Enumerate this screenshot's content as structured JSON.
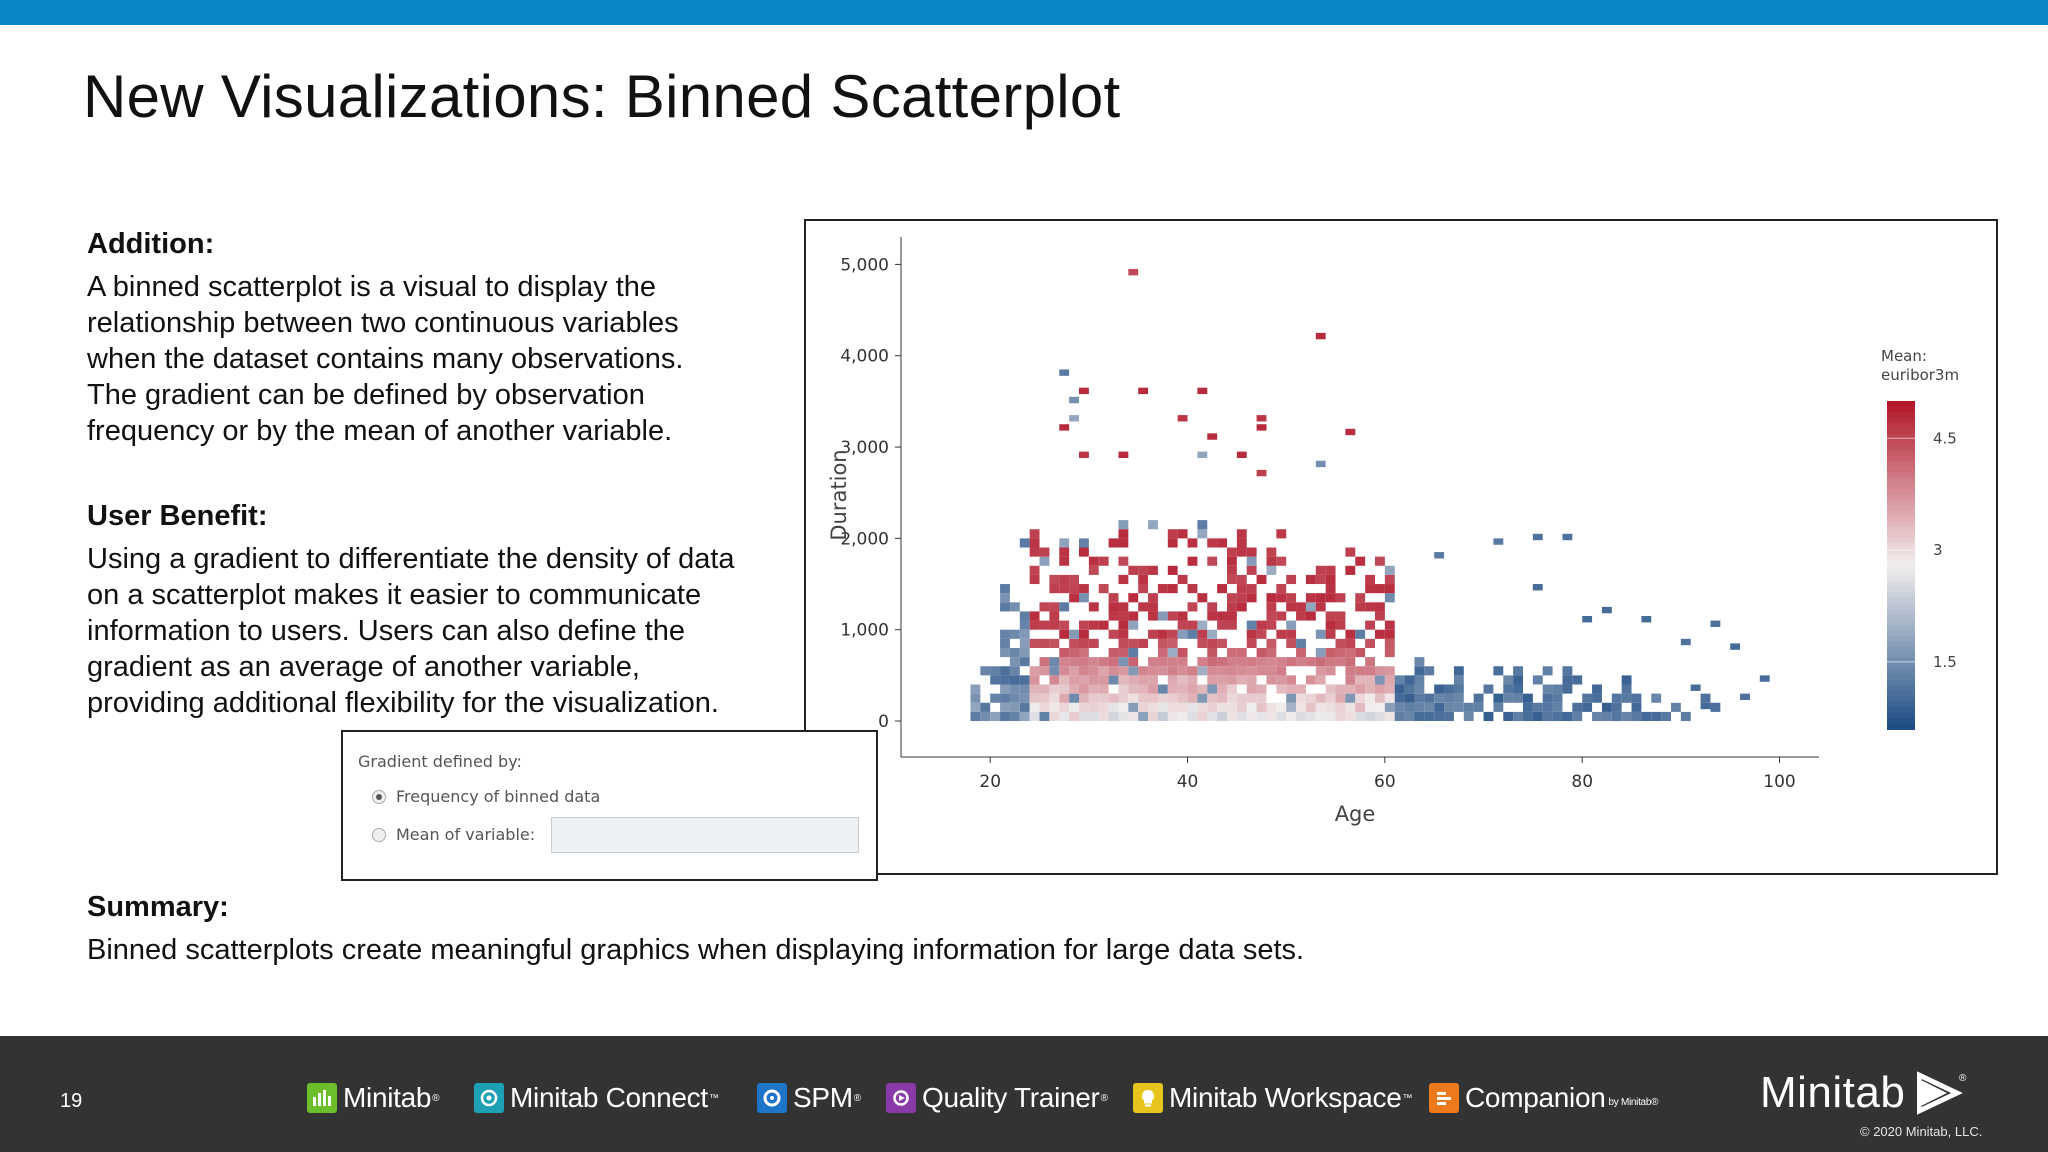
{
  "slide": {
    "title": "New Visualizations: Binned Scatterplot",
    "page_number": "19"
  },
  "addition": {
    "heading": "Addition:",
    "lines": [
      "A binned scatterplot is a visual to display the",
      "relationship between two continuous variables",
      "when the dataset contains many observations.",
      "The gradient can be defined by observation",
      "frequency or by the mean of another variable."
    ]
  },
  "user_benefit": {
    "heading": "User Benefit:",
    "lines": [
      "Using a gradient to differentiate the density of data",
      "on a scatterplot makes it easier to communicate",
      "information to users. Users can also define the",
      "gradient as an average of another variable,",
      "providing additional flexibility for the visualization."
    ]
  },
  "summary": {
    "heading": "Summary:",
    "text": "Binned scatterplots create meaningful graphics when displaying information for large data sets."
  },
  "dialog": {
    "title": "Gradient defined by:",
    "options": [
      "Frequency of binned data",
      "Mean of variable:"
    ],
    "selected": 0,
    "variable_value": ""
  },
  "colors": {
    "accent_bar": "#0a86c8",
    "footer_bg": "#333333",
    "gradient_high": "#b2182b",
    "gradient_mid": "#f2eeee",
    "gradient_low": "#1f4e85"
  },
  "chart_data": {
    "type": "heatmap",
    "subtype": "binned scatterplot",
    "title": "",
    "xlabel": "Age",
    "ylabel": "Duration",
    "xlim": [
      14,
      104
    ],
    "ylim": [
      -350,
      5300
    ],
    "xticks": [
      20,
      40,
      60,
      80,
      100
    ],
    "xtick_labels": [
      "20",
      "40",
      "60",
      "80",
      "100"
    ],
    "yticks": [
      0,
      1000,
      2000,
      3000,
      4000,
      5000
    ],
    "ytick_labels": [
      "0",
      "1,000",
      "2,000",
      "3,000",
      "4,000",
      "5,000"
    ],
    "bin_width_x": 1,
    "bin_height_y": 100,
    "color_variable": "Mean: euribor3m",
    "legend_title_lines": [
      "Mean:",
      "euribor3m"
    ],
    "legend_placement": "right",
    "legend_ticks": [
      4.5,
      3,
      1.5
    ],
    "legend_tick_labels": [
      "4.5",
      "3",
      "1.5"
    ],
    "legend_range": [
      0.6,
      5.0
    ],
    "regions_note": "Low duration bins dense across ages 18-95; ages 18-24 and >60 have low euribor3m (blue), ages 24-60 have high euribor3m (red), with a pale core of mid values at low durations.",
    "outliers": [
      {
        "x": 34,
        "y": 4900,
        "mean": 4.5
      },
      {
        "x": 53,
        "y": 4200,
        "mean": 4.8
      },
      {
        "x": 27,
        "y": 3800,
        "mean": 1.2
      },
      {
        "x": 29,
        "y": 3600,
        "mean": 4.8
      },
      {
        "x": 35,
        "y": 3600,
        "mean": 4.8
      },
      {
        "x": 41,
        "y": 3600,
        "mean": 4.8
      },
      {
        "x": 28,
        "y": 3500,
        "mean": 1.5
      },
      {
        "x": 28,
        "y": 3300,
        "mean": 1.8
      },
      {
        "x": 39,
        "y": 3300,
        "mean": 4.7
      },
      {
        "x": 47,
        "y": 3300,
        "mean": 4.7
      },
      {
        "x": 47,
        "y": 3200,
        "mean": 4.8
      },
      {
        "x": 27,
        "y": 3200,
        "mean": 4.8
      },
      {
        "x": 42,
        "y": 3100,
        "mean": 4.8
      },
      {
        "x": 56,
        "y": 3150,
        "mean": 4.8
      },
      {
        "x": 29,
        "y": 2900,
        "mean": 4.7
      },
      {
        "x": 33,
        "y": 2900,
        "mean": 4.8
      },
      {
        "x": 45,
        "y": 2900,
        "mean": 4.8
      },
      {
        "x": 41,
        "y": 2900,
        "mean": 1.8
      },
      {
        "x": 53,
        "y": 2800,
        "mean": 1.5
      },
      {
        "x": 47,
        "y": 2700,
        "mean": 4.6
      },
      {
        "x": 75,
        "y": 2000,
        "mean": 1.1
      },
      {
        "x": 71,
        "y": 1950,
        "mean": 1.2
      },
      {
        "x": 78,
        "y": 2000,
        "mean": 1.1
      },
      {
        "x": 65,
        "y": 1800,
        "mean": 1.2
      },
      {
        "x": 75,
        "y": 1450,
        "mean": 1.0
      },
      {
        "x": 82,
        "y": 1200,
        "mean": 1.0
      },
      {
        "x": 80,
        "y": 1100,
        "mean": 1.0
      },
      {
        "x": 86,
        "y": 1100,
        "mean": 1.0
      },
      {
        "x": 93,
        "y": 1050,
        "mean": 1.1
      },
      {
        "x": 90,
        "y": 850,
        "mean": 1.1
      },
      {
        "x": 95,
        "y": 800,
        "mean": 1.0
      },
      {
        "x": 98,
        "y": 450,
        "mean": 1.0
      },
      {
        "x": 96,
        "y": 250,
        "mean": 1.1
      },
      {
        "x": 91,
        "y": 350,
        "mean": 1.0
      },
      {
        "x": 92,
        "y": 150,
        "mean": 1.0
      }
    ]
  },
  "footer": {
    "products": [
      {
        "name": "Minitab",
        "mark": "®",
        "icon": "minitab-icon",
        "icon_color": "#6cbf2a"
      },
      {
        "name": "Minitab Connect",
        "mark": "™",
        "icon": "connect-icon",
        "icon_color": "#1ea1b5"
      },
      {
        "name": "SPM",
        "mark": "®",
        "icon": "spm-icon",
        "icon_color": "#1e74c7"
      },
      {
        "name": "Quality Trainer",
        "mark": "®",
        "icon": "quality-trainer-icon",
        "icon_color": "#8a3aa8"
      },
      {
        "name": "Minitab Workspace",
        "mark": "™",
        "icon": "workspace-icon",
        "icon_color": "#e8c51c"
      },
      {
        "name": "Companion",
        "mark": "",
        "suffix": "by Minitab®",
        "icon": "companion-icon",
        "icon_color": "#ec7a1c"
      }
    ],
    "brand": "Minitab",
    "brand_mark": "®",
    "copyright": "© 2020 Minitab, LLC."
  }
}
